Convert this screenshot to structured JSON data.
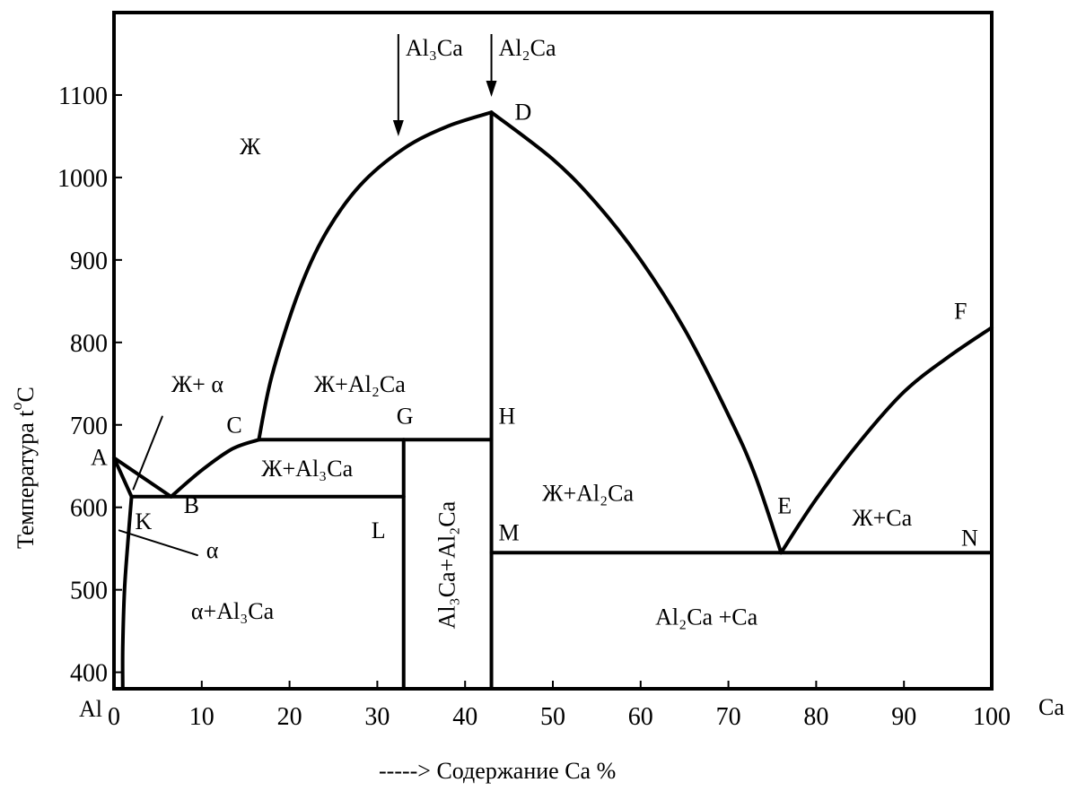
{
  "chart_data": {
    "type": "phase-diagram",
    "title": "",
    "xlabel": "-----> Содержание Ca %",
    "ylabel": "Температура t°C",
    "ylabel_main": "Температура t",
    "ylabel_deg": "o",
    "ylabel_unit": "C",
    "xlim": [
      0,
      100
    ],
    "ylim": [
      380,
      1200
    ],
    "x_ticks": [
      0,
      10,
      20,
      30,
      40,
      50,
      60,
      70,
      80,
      90,
      100
    ],
    "x_tick_labels": [
      "0",
      "10",
      "20",
      "30",
      "40",
      "50",
      "60",
      "70",
      "80",
      "90",
      "100"
    ],
    "y_ticks": [
      400,
      500,
      600,
      700,
      800,
      900,
      1000,
      1100
    ],
    "y_tick_labels": [
      "400",
      "500",
      "600",
      "700",
      "800",
      "900",
      "1000",
      "1100"
    ],
    "x_end_left": "Al",
    "x_end_right": "Ca",
    "compounds": [
      {
        "name": "Al₃Ca",
        "x": 32.5
      },
      {
        "name": "Al₂Ca",
        "x": 43
      }
    ],
    "points": [
      {
        "label": "A",
        "x": 0,
        "y": 660
      },
      {
        "label": "B",
        "x": 6.5,
        "y": 613
      },
      {
        "label": "C",
        "x": 16.5,
        "y": 682
      },
      {
        "label": "D",
        "x": 43,
        "y": 1079
      },
      {
        "label": "E",
        "x": 76,
        "y": 545
      },
      {
        "label": "F",
        "x": 100,
        "y": 818
      },
      {
        "label": "G",
        "x": 33,
        "y": 682
      },
      {
        "label": "H",
        "x": 43,
        "y": 682
      },
      {
        "label": "K",
        "x": 2,
        "y": 613
      },
      {
        "label": "L",
        "x": 33,
        "y": 613
      },
      {
        "label": "M",
        "x": 43,
        "y": 545
      },
      {
        "label": "N",
        "x": 100,
        "y": 545
      }
    ],
    "lines": [
      {
        "name": "liquidus-A-B",
        "points": [
          [
            0,
            660
          ],
          [
            6.5,
            613
          ]
        ]
      },
      {
        "name": "liquidus-B-C",
        "points": [
          [
            6.5,
            613
          ],
          [
            10,
            645
          ],
          [
            13.5,
            671
          ],
          [
            16.5,
            682
          ]
        ]
      },
      {
        "name": "liquidus-C-D",
        "points": [
          [
            16.5,
            682
          ],
          [
            18,
            760
          ],
          [
            21,
            860
          ],
          [
            24,
            930
          ],
          [
            28,
            990
          ],
          [
            33,
            1035
          ],
          [
            38,
            1062
          ],
          [
            43,
            1079
          ]
        ]
      },
      {
        "name": "liquidus-D-E",
        "points": [
          [
            43,
            1079
          ],
          [
            50,
            1022
          ],
          [
            55,
            968
          ],
          [
            60,
            900
          ],
          [
            65,
            816
          ],
          [
            70,
            712
          ],
          [
            73,
            640
          ],
          [
            76,
            545
          ]
        ]
      },
      {
        "name": "liquidus-E-F",
        "points": [
          [
            76,
            545
          ],
          [
            80,
            610
          ],
          [
            85,
            680
          ],
          [
            90,
            740
          ],
          [
            95,
            782
          ],
          [
            100,
            818
          ]
        ]
      },
      {
        "name": "solidus-A-K",
        "points": [
          [
            0,
            660
          ],
          [
            2,
            613
          ]
        ]
      },
      {
        "name": "solvus-K",
        "points": [
          [
            2,
            613
          ],
          [
            1.6,
            560
          ],
          [
            1.2,
            500
          ],
          [
            1,
            430
          ],
          [
            1,
            380
          ]
        ]
      },
      {
        "name": "eutectic-K-L",
        "points": [
          [
            2,
            613
          ],
          [
            33,
            613
          ]
        ]
      },
      {
        "name": "peritectic-C-H",
        "points": [
          [
            16.5,
            682
          ],
          [
            43,
            682
          ]
        ]
      },
      {
        "name": "compound-Al3Ca",
        "points": [
          [
            33,
            682
          ],
          [
            33,
            380
          ]
        ]
      },
      {
        "name": "compound-Al2Ca",
        "points": [
          [
            43,
            1079
          ],
          [
            43,
            380
          ]
        ]
      },
      {
        "name": "eutectic-M-N",
        "points": [
          [
            43,
            545
          ],
          [
            100,
            545
          ]
        ]
      },
      {
        "name": "alpha-leader",
        "points": [
          [
            0.6,
            572
          ],
          [
            9.5,
            542
          ]
        ]
      },
      {
        "name": "alpha-liquid-leader",
        "points": [
          [
            5.5,
            710
          ],
          [
            2.2,
            622
          ]
        ]
      }
    ],
    "regions": [
      {
        "label": "Ж",
        "x": 15.5,
        "y": 1028
      },
      {
        "label": "Ж+ α",
        "x": 9.5,
        "y": 740
      },
      {
        "label": "Ж+Al₂Ca",
        "x": 28,
        "y": 740
      },
      {
        "label": "Ж+Al₃Ca",
        "x": 22,
        "y": 638
      },
      {
        "label": "Ж+Al₂Ca",
        "x": 54,
        "y": 608
      },
      {
        "label": "Ж+Ca",
        "x": 87.5,
        "y": 578
      },
      {
        "label": "α",
        "x": 11.2,
        "y": 539
      },
      {
        "label": "α+Al₃Ca",
        "x": 13.5,
        "y": 465
      },
      {
        "label": "Al₃Ca+Al₂Ca",
        "x": 38.8,
        "y": 530
      },
      {
        "label": "Al₂Ca +Ca",
        "x": 67.5,
        "y": 458
      }
    ]
  }
}
